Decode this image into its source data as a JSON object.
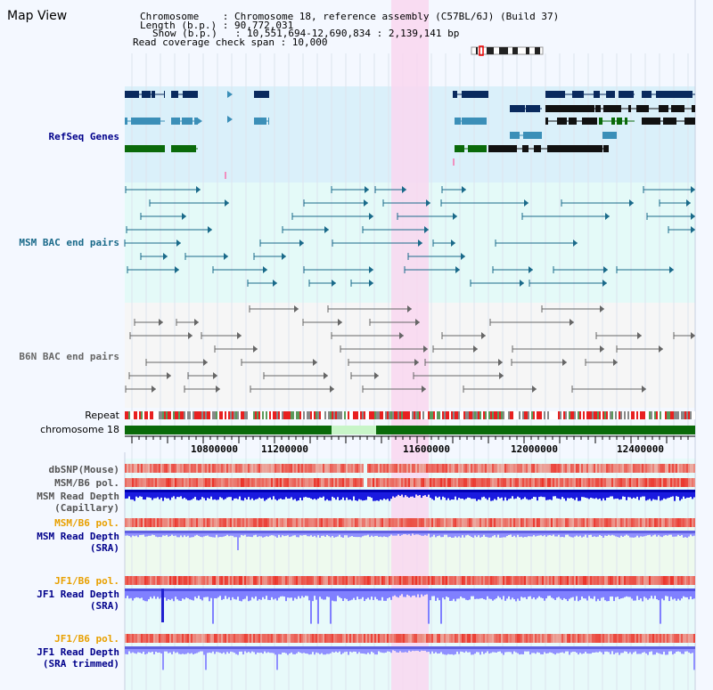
{
  "header": {
    "title": "Map View",
    "lines": [
      "Chromosome    : Chromosome 18, reference assembly (C57BL/6J) (Build 37)",
      "Length (b.p.) : 90,772,031",
      "Show (b.p.)   : 10,551,694-12,690,834 : 2,139,141 bp",
      "Read coverage check span : 10,000"
    ]
  },
  "tracks": {
    "refseq": {
      "label": "RefSeq Genes",
      "color": "#1a4fa0"
    },
    "msm_bac": {
      "label": "MSM BAC end pairs",
      "color": "#1a6a8a"
    },
    "b6n_bac": {
      "label": "B6N BAC end pairs",
      "color": "#666666"
    },
    "repeat": {
      "label": "Repeat"
    },
    "chromosome": {
      "label": "chromosome 18"
    },
    "dbsnp": {
      "label": "dbSNP(Mouse)"
    },
    "msm_b6_pol_1": {
      "label": "MSM/B6 pol."
    },
    "msm_depth_cap": {
      "label_line1": "MSM Read Depth",
      "label_line2": "(Capillary)"
    },
    "msm_b6_pol_2": {
      "label": "MSM/B6 pol."
    },
    "msm_depth_sra": {
      "label_line1": "MSM Read Depth",
      "label_line2": "(SRA)"
    },
    "jf1_b6_pol_1": {
      "label": "JF1/B6 pol."
    },
    "jf1_depth_sra": {
      "label_line1": "JF1 Read Depth",
      "label_line2": "(SRA)"
    },
    "jf1_b6_pol_2": {
      "label": "JF1/B6 pol."
    },
    "jf1_depth_trim": {
      "label_line1": "JF1 Read Depth",
      "label_line2": "(SRA trimmed)"
    }
  },
  "axis": {
    "ticks": [
      "10800000",
      "11200000",
      "11600000",
      "12000000",
      "12400000"
    ]
  },
  "colors": {
    "highlight": "#f9d7f0",
    "refseq_dark": "#0a2a5e",
    "refseq_mid": "#3b8fb8",
    "refseq_green": "#0a6a0a",
    "chromosome_band": "#0a6a0a",
    "gap_band": "#c8f5c8",
    "snp_red": "#e82020",
    "depth_blue": "#1a1ae0",
    "depth_light": "#8888ff",
    "label_orange": "#e8a000",
    "label_blue": "#00008b"
  }
}
